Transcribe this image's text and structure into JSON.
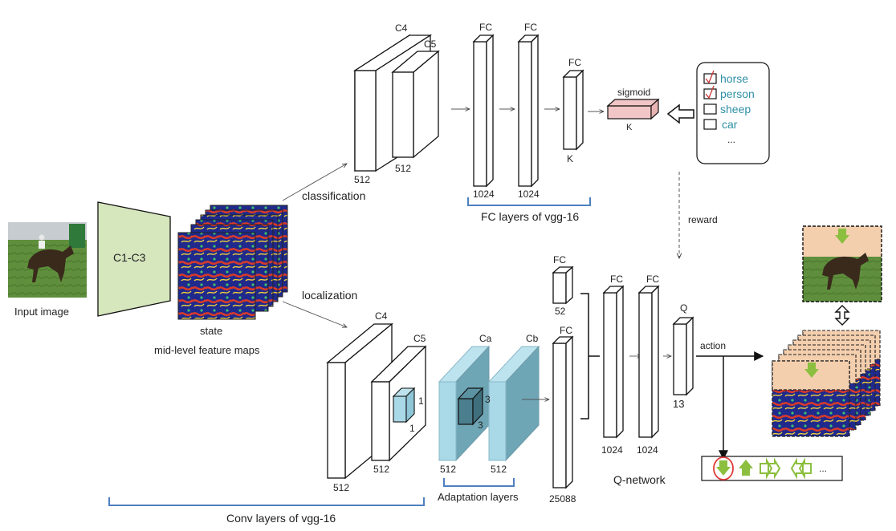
{
  "labels": {
    "input_image": "Input image",
    "c1c3": "C1-C3",
    "state": "state",
    "feature_maps": "mid-level feature maps",
    "classification": "classification",
    "localization": "localization",
    "c4": "C4",
    "c5": "C5",
    "fc": "FC",
    "ca": "Ca",
    "cb": "Cb",
    "q": "Q",
    "sigmoid": "sigmoid",
    "reward": "reward",
    "action": "action",
    "k": "K",
    "ellipsis": "...",
    "fc_layers_vgg": "FC layers of vgg-16",
    "adaptation_layers": "Adaptation layers",
    "conv_layers_vgg": "Conv layers of vgg-16",
    "q_network": "Q-network"
  },
  "dims": {
    "d512": "512",
    "d1024": "1024",
    "d52": "52",
    "d25088": "25088",
    "d13": "13",
    "d1": "1",
    "d3": "3"
  },
  "classes": [
    "horse",
    "person",
    "sheep",
    "car"
  ],
  "colors": {
    "c1c3_fill": "#d6e6bd",
    "adapt_fill": "#a9d8e6",
    "brace": "#4f7fc0",
    "class_text": "#2f8fa6",
    "sigmoid_fill": "#f2c6c6",
    "check": "#cc3333",
    "arrow_green": "#8cbf3f"
  }
}
